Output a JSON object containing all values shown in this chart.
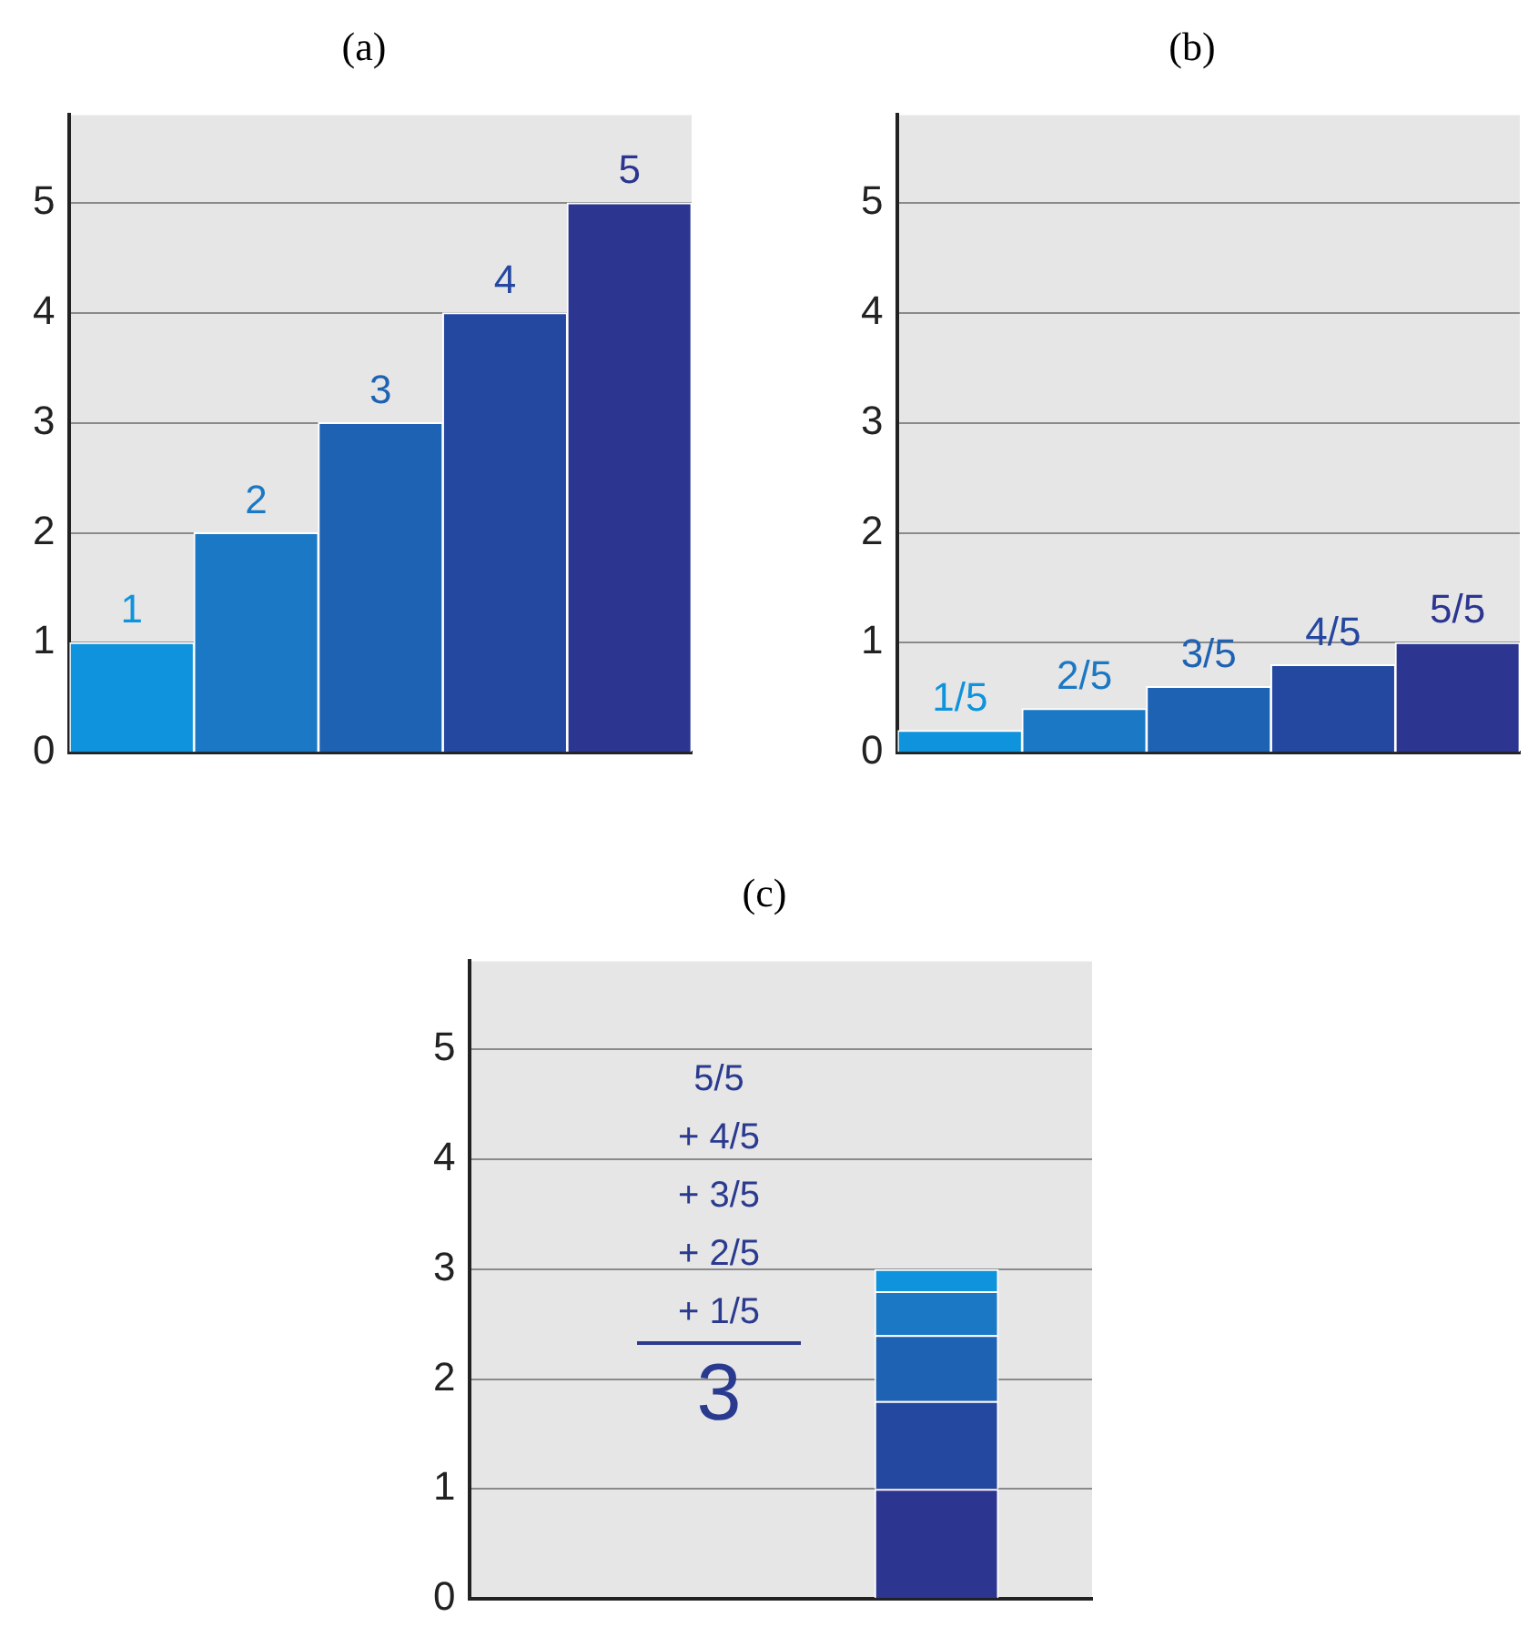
{
  "chart_data": [
    {
      "type": "bar",
      "title": "(a)",
      "categories": [
        null,
        null,
        null,
        null,
        null
      ],
      "values": [
        1,
        2,
        3,
        4,
        5
      ],
      "colors": [
        "#0e93dc",
        "#1a78c4",
        "#1e62b4",
        "#2447a0",
        "#2c3590"
      ],
      "ylim": [
        0,
        5.8
      ],
      "yticks": [
        0,
        1,
        2,
        3,
        4,
        5
      ],
      "grid": "y",
      "data_labels": true
    },
    {
      "type": "bar",
      "title": "(b)",
      "categories": [
        null,
        null,
        null,
        null,
        null
      ],
      "values": [
        0.2,
        0.4,
        0.6,
        0.8,
        1
      ],
      "value_labels": [
        "1/5",
        "2/5",
        "3/5",
        "4/5",
        "5/5"
      ],
      "colors": [
        "#0e93dc",
        "#1a78c4",
        "#1e62b4",
        "#2447a0",
        "#2c3590"
      ],
      "ylim": [
        0,
        5.8
      ],
      "yticks": [
        0,
        1,
        2,
        3,
        4,
        5
      ],
      "grid": "y"
    },
    {
      "type": "bar",
      "title": "(c)",
      "stacked": true,
      "categories": [
        null,
        null
      ],
      "series": [
        {
          "color": "#2c3590",
          "values": [
            null,
            1
          ]
        },
        {
          "color": "#2447a0",
          "values": [
            null,
            0.8
          ]
        },
        {
          "color": "#1e62b4",
          "values": [
            null,
            0.6
          ]
        },
        {
          "color": "#1a78c4",
          "values": [
            null,
            0.4
          ]
        },
        {
          "color": "#0e93dc",
          "values": [
            null,
            0.2
          ]
        }
      ],
      "ylim": [
        0,
        5.8
      ],
      "yticks": [
        0,
        1,
        2,
        3,
        4,
        5
      ],
      "grid": "y",
      "annotations": [
        "5/5",
        "+ 4/5",
        "+ 3/5",
        "+ 2/5",
        "+ 1/5",
        "3"
      ]
    }
  ]
}
